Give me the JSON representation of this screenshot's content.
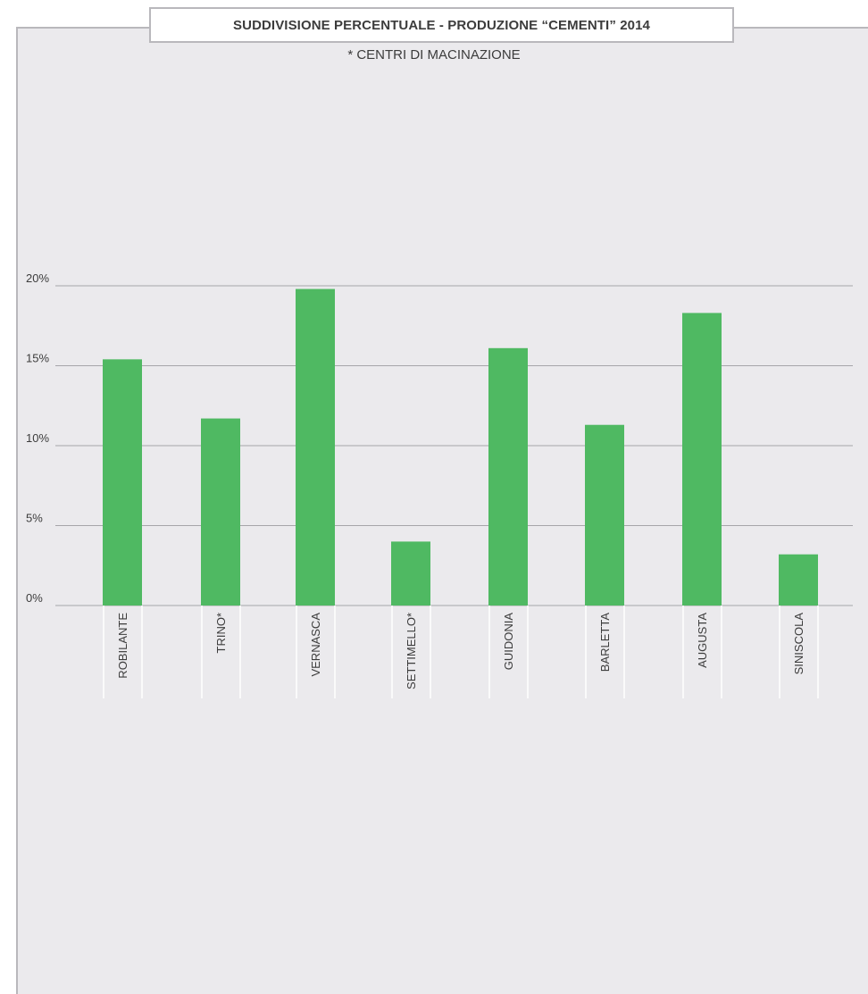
{
  "header": {
    "title": "SUDDIVISIONE PERCENTUALE - PRODUZIONE “CEMENTI” 2014",
    "subtitle": "* CENTRI DI MACINAZIONE"
  },
  "colors": {
    "bar": "#4fb962",
    "grid": "#a6a5a9",
    "panel": "#ebeaed"
  },
  "chart_data": {
    "type": "bar",
    "title": "SUDDIVISIONE PERCENTUALE - PRODUZIONE “CEMENTI” 2014",
    "subtitle": "* CENTRI DI MACINAZIONE",
    "categories": [
      "ROBILANTE",
      "TRINO*",
      "VERNASCA",
      "SETTIMELLO*",
      "GUIDONIA",
      "BARLETTA",
      "AUGUSTA",
      "SINISCOLA"
    ],
    "values": [
      15.4,
      11.7,
      19.8,
      4.0,
      16.1,
      11.3,
      18.3,
      3.2
    ],
    "yticks": [
      0,
      5,
      10,
      15,
      20
    ],
    "ytick_labels": [
      "0%",
      "5%",
      "10%",
      "15%",
      "20%"
    ],
    "ylim": [
      0,
      20
    ],
    "xlabel": "",
    "ylabel": "",
    "grid": true,
    "legend": "none"
  }
}
